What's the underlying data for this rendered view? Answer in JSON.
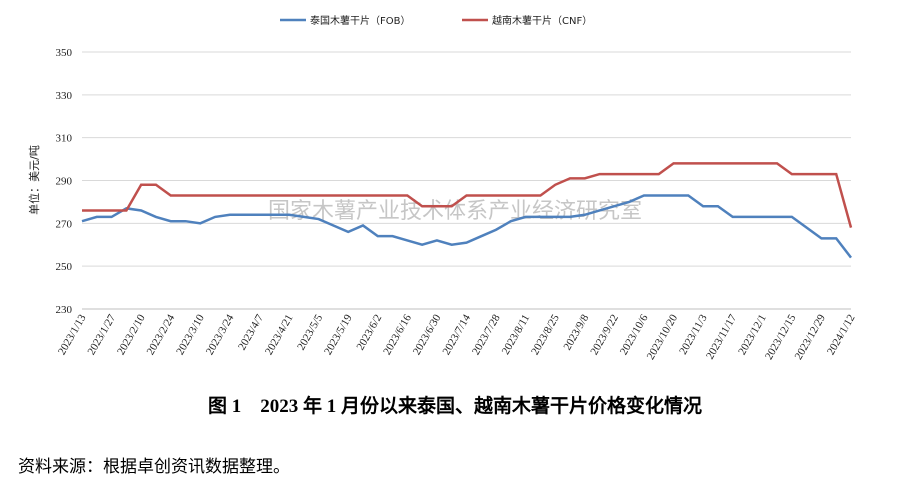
{
  "chart_data": {
    "type": "line",
    "legend": "top",
    "y_label": "单位：美元/吨",
    "watermark": "国家木薯产业技术体系产业经济研究室",
    "caption": "图 1　2023 年 1 月份以来泰国、越南木薯干片价格变化情况",
    "source": "资料来源：根据卓创资讯数据整理。",
    "categories": [
      "2023/1/13",
      null,
      "2023/1/27",
      null,
      "2023/2/10",
      null,
      "2023/2/24",
      null,
      "2023/3/10",
      null,
      "2023/3/24",
      null,
      "2023/4/7",
      null,
      "2023/4/21",
      null,
      "2023/5/5",
      null,
      "2023/5/19",
      null,
      "2023/6/2",
      null,
      "2023/6/16",
      null,
      "2023/6/30",
      null,
      "2023/7/14",
      null,
      "2023/7/28",
      null,
      "2023/8/11",
      null,
      "2023/8/25",
      null,
      "2023/9/8",
      null,
      "2023/9/22",
      null,
      "2023/10/6",
      null,
      "2023/10/20",
      null,
      "2023/11/3",
      null,
      "2023/11/17",
      null,
      "2023/12/1",
      null,
      "2023/12/15",
      null,
      "2023/12/29",
      null,
      "2024/1/12"
    ],
    "series": [
      {
        "name": "泰国木薯干片（FOB）",
        "color": "#4f81bd",
        "values": [
          271,
          273,
          273,
          277,
          276,
          273,
          271,
          271,
          270,
          273,
          274,
          274,
          274,
          274,
          274,
          273,
          272,
          269,
          266,
          269,
          264,
          264,
          262,
          260,
          262,
          260,
          261,
          264,
          267,
          271,
          273,
          273,
          273,
          273,
          274,
          276,
          278,
          280,
          283,
          283,
          283,
          283,
          278,
          278,
          273,
          273,
          273,
          273,
          273,
          268,
          263,
          263,
          254
        ]
      },
      {
        "name": "越南木薯干片（CNF）",
        "color": "#c0504d",
        "values": [
          276,
          276,
          276,
          276,
          288,
          288,
          283,
          283,
          283,
          283,
          283,
          283,
          283,
          283,
          283,
          283,
          283,
          283,
          283,
          283,
          283,
          283,
          283,
          278,
          278,
          278,
          283,
          283,
          283,
          283,
          283,
          283,
          288,
          291,
          291,
          293,
          293,
          293,
          293,
          293,
          298,
          298,
          298,
          298,
          298,
          298,
          298,
          298,
          293,
          293,
          293,
          293,
          268
        ]
      }
    ],
    "ylim": [
      230,
      350
    ],
    "yticks": [
      230,
      250,
      270,
      290,
      310,
      330,
      350
    ],
    "grid": true
  }
}
